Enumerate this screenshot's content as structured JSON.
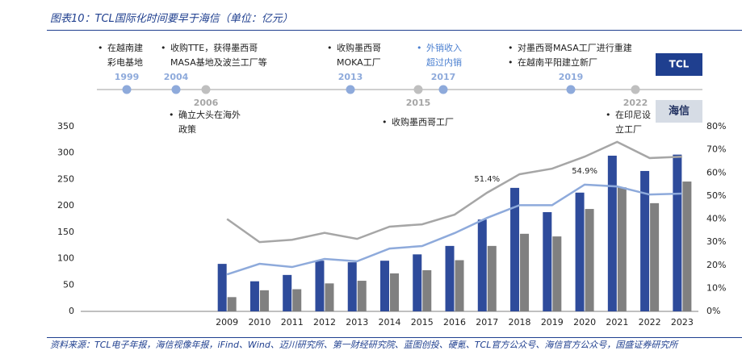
{
  "header": {
    "title": "图表10：TCL国际化时间要早于海信（单位：亿元）"
  },
  "timeline": {
    "tcl_label": "TCL",
    "hisense_label": "海信",
    "events": [
      {
        "group": "tcl",
        "year": "1999",
        "items": [
          [
            "在越南建",
            "彩电基地"
          ]
        ]
      },
      {
        "group": "tcl",
        "year": "2004",
        "items": [
          [
            "收购TTE，获得墨西哥",
            "MASA基地及波兰工厂等"
          ]
        ]
      },
      {
        "group": "hisense",
        "year": "2006",
        "items": [
          [
            "确立大头在海外",
            "政策"
          ]
        ]
      },
      {
        "group": "tcl",
        "year": "2013",
        "items": [
          [
            "收购墨西哥",
            "MOKA工厂"
          ]
        ]
      },
      {
        "group": "hisense",
        "year": "2015",
        "items": [
          [
            "收购墨西哥工厂"
          ]
        ]
      },
      {
        "group": "tcl",
        "year": "2017",
        "items": [
          [
            "外销收入",
            "超过内销"
          ]
        ],
        "highlight": true
      },
      {
        "group": "tcl",
        "year": "2019",
        "items": [
          [
            "对墨西哥MASA工厂进行重建"
          ],
          [
            "在越南平阳建立新厂"
          ]
        ]
      },
      {
        "group": "hisense",
        "year": "2022",
        "items": [
          [
            "在印尼设",
            "立工厂"
          ]
        ]
      }
    ]
  },
  "chart_data": {
    "type": "bar-line",
    "categories": [
      null,
      null,
      null,
      null,
      "2009",
      "2010",
      "2011",
      "2012",
      "2013",
      "2014",
      "2015",
      "2016",
      "2017",
      "2018",
      "2019",
      "2020",
      "2021",
      "2022",
      "2023"
    ],
    "ylim": [
      0,
      350
    ],
    "yticks": [
      0,
      50,
      100,
      150,
      200,
      250,
      300,
      350
    ],
    "y2lim": [
      0,
      80
    ],
    "y2ticks": [
      {
        "value": 0,
        "label": "0%"
      },
      {
        "value": 10,
        "label": "10%"
      },
      {
        "value": 20,
        "label": "20%"
      },
      {
        "value": 30,
        "label": "30%"
      },
      {
        "value": 40,
        "label": "40%"
      },
      {
        "value": 50,
        "label": "50%"
      },
      {
        "value": 60,
        "label": "60%"
      },
      {
        "value": 70,
        "label": "70%"
      },
      {
        "value": 80,
        "label": "80%"
      }
    ],
    "series": [
      {
        "type": "bar",
        "color": "#2e4b9b",
        "values": [
          null,
          null,
          null,
          null,
          90,
          57,
          69,
          96,
          93,
          96,
          108,
          124,
          174,
          234,
          188,
          225,
          295,
          266,
          297
        ]
      },
      {
        "type": "bar",
        "color": "#808080",
        "values": [
          null,
          null,
          null,
          null,
          27,
          40,
          42,
          53,
          58,
          72,
          78,
          97,
          124,
          147,
          142,
          194,
          235,
          205,
          246
        ]
      },
      {
        "type": "line",
        "axis": "y2",
        "color": "#a6a6a6",
        "values": [
          null,
          null,
          null,
          null,
          40,
          30,
          31,
          34,
          31.4,
          36.7,
          37.7,
          41.9,
          51.4,
          59.4,
          61.8,
          67,
          73.4,
          66.4,
          67
        ],
        "value_labels": [
          null,
          null,
          null,
          null,
          null,
          null,
          null,
          null,
          null,
          null,
          null,
          null,
          "51.4%",
          null,
          null,
          null,
          null,
          null,
          null
        ]
      },
      {
        "type": "line",
        "axis": "y2",
        "color": "#8eaadb",
        "values": [
          null,
          null,
          null,
          null,
          16,
          20.6,
          19.2,
          22.7,
          21.7,
          27.2,
          28.3,
          33.9,
          40.5,
          46,
          46,
          54.9,
          54.1,
          50.6,
          51
        ],
        "value_labels": [
          null,
          null,
          null,
          null,
          null,
          null,
          null,
          null,
          null,
          null,
          null,
          null,
          null,
          null,
          null,
          "54.9%",
          null,
          null,
          null
        ]
      }
    ]
  },
  "footer": {
    "source": "资料来源：TCL电子年报，海信视像年报，iFind、Wind、迈川研究所、第一财经研究院、蓝图创投、硬氪、TCL官方公众号、海信官方公众号，国盛证券研究所"
  }
}
